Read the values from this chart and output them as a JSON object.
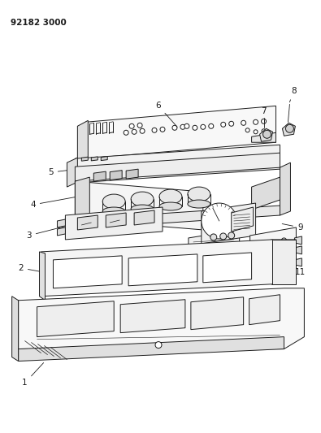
{
  "title_code": "92182 3000",
  "bg": "#ffffff",
  "lc": "#1a1a1a",
  "figsize": [
    3.95,
    5.33
  ],
  "dpi": 100
}
